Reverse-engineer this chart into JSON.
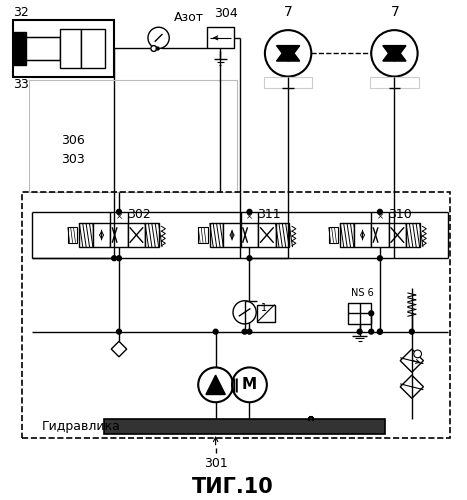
{
  "title": "ΤИГ.10",
  "background": "#ffffff",
  "lc": "#000000",
  "label_32": "32",
  "label_33": "33",
  "label_7a": "7",
  "label_7b": "7",
  "label_304": "304",
  "label_azot": "Азот",
  "label_306": "306",
  "label_303": "303",
  "label_302": "302",
  "label_311": "311",
  "label_310": "310",
  "label_301": "301",
  "label_gidravlika": "Гидравлика",
  "label_ns6": "NS 6"
}
